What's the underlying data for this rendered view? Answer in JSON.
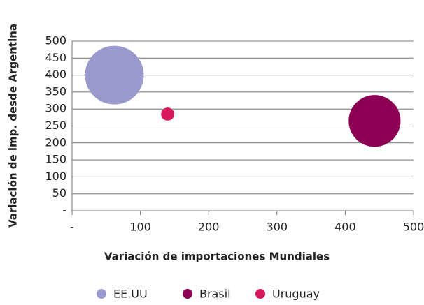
{
  "chart_data": {
    "type": "scatter",
    "xlabel": "Variación de importaciones Mundiales",
    "ylabel": "Variación de imp. desde Argentina",
    "xlim": [
      0,
      500
    ],
    "ylim": [
      0,
      500
    ],
    "xticks": [
      {
        "value": 0,
        "label": "-"
      },
      100,
      200,
      300,
      400,
      500
    ],
    "yticks": [
      {
        "value": 0,
        "label": "-"
      },
      50,
      100,
      150,
      200,
      250,
      300,
      350,
      400,
      450,
      500
    ],
    "grid": true,
    "legend": "bottom",
    "series": [
      {
        "name": "EE.UU",
        "color": "#9999cc",
        "x": [
          62
        ],
        "values": [
          400
        ],
        "sizes": [
          100
        ]
      },
      {
        "name": "Brasil",
        "color": "#8b0055",
        "x": [
          443
        ],
        "values": [
          265
        ],
        "sizes": [
          78
        ]
      },
      {
        "name": "Uruguay",
        "color": "#d6185a",
        "x": [
          140
        ],
        "values": [
          285
        ],
        "sizes": [
          5
        ]
      }
    ]
  }
}
